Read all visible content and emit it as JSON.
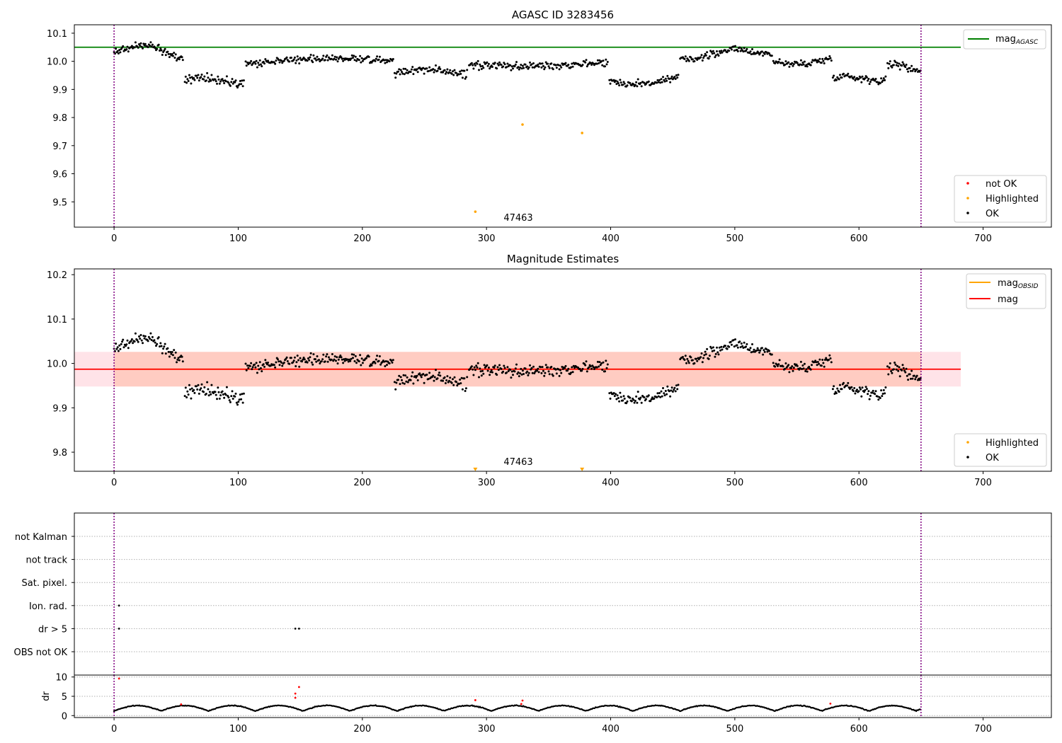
{
  "chart_data": [
    {
      "type": "scatter",
      "title": "AGASC ID 3283456",
      "xlim": [
        -32,
        755
      ],
      "ylim": [
        9.41,
        10.13
      ],
      "xticks": [
        0,
        100,
        200,
        300,
        400,
        500,
        600,
        700
      ],
      "yticks": [
        9.5,
        9.6,
        9.7,
        9.8,
        9.9,
        10.0,
        10.1
      ],
      "hlines": [
        {
          "name": "mag_AGASC",
          "y": 10.05,
          "x_end": 682,
          "color": "#008000"
        }
      ],
      "vlines": [
        0,
        650
      ],
      "annotations": [
        {
          "text": "47463",
          "x": 325,
          "y": 9.45
        }
      ],
      "highlighted": [
        [
          291,
          9.465
        ],
        [
          329,
          9.775
        ],
        [
          377,
          9.745
        ]
      ],
      "legend_lines": [
        {
          "label": "mag",
          "sub": "AGASC",
          "color": "#008000"
        }
      ],
      "legend_points": [
        {
          "label": "not OK",
          "color": "#ff0000"
        },
        {
          "label": "Highlighted",
          "color": "#ffa500"
        },
        {
          "label": "OK",
          "color": "#000000"
        }
      ],
      "legend_position": "upper-right / lower-right"
    },
    {
      "type": "scatter",
      "title": "Magnitude Estimates",
      "xlim": [
        -32,
        755
      ],
      "ylim": [
        9.757,
        10.213
      ],
      "xticks": [
        0,
        100,
        200,
        300,
        400,
        500,
        600,
        700
      ],
      "yticks": [
        9.8,
        9.9,
        10.0,
        10.1,
        10.2
      ],
      "mean_line": {
        "name": "mag",
        "y": 9.987,
        "x_end": 682,
        "color": "#ff0000"
      },
      "band": {
        "low": 9.948,
        "high": 10.026,
        "x_obs_start": 0,
        "x_obs_end": 650,
        "x_end": 682
      },
      "vlines": [
        0,
        650
      ],
      "annotations": [
        {
          "text": "47463",
          "x": 325,
          "y": 9.77
        }
      ],
      "highlighted_markers": [
        [
          291,
          9.762
        ],
        [
          377,
          9.762
        ]
      ],
      "legend_lines": [
        {
          "label": "mag",
          "sub": "OBSID",
          "color": "#ffa500"
        },
        {
          "label": "mag",
          "sub": "",
          "color": "#ff0000"
        }
      ],
      "legend_points": [
        {
          "label": "Highlighted",
          "color": "#ffa500"
        },
        {
          "label": "OK",
          "color": "#000000"
        }
      ]
    },
    {
      "type": "scatter",
      "title": "",
      "xlim": [
        -32,
        755
      ],
      "categories": [
        "not Kalman",
        "not track",
        "Sat. pixel.",
        "Ion. rad.",
        "dr > 5",
        "OBS not OK"
      ],
      "flag_points": [
        {
          "category": "Ion. rad.",
          "x": [
            4
          ]
        },
        {
          "category": "dr > 5",
          "x": [
            4,
            146,
            149
          ]
        }
      ],
      "vlines": [
        0,
        650
      ]
    },
    {
      "type": "scatter",
      "title": "",
      "ylabel": "dr",
      "xlim": [
        -32,
        755
      ],
      "ylim": [
        -0.5,
        10.5
      ],
      "xticks": [
        0,
        100,
        200,
        300,
        400,
        500,
        600,
        700
      ],
      "yticks": [
        0,
        5,
        10
      ],
      "red_points": [
        [
          4,
          9.6
        ],
        [
          54,
          2.9
        ],
        [
          146,
          5.7
        ],
        [
          146,
          4.6
        ],
        [
          149,
          7.4
        ],
        [
          291,
          4.0
        ],
        [
          328,
          3.0
        ],
        [
          329,
          3.9
        ],
        [
          577,
          3.1
        ]
      ],
      "vlines": [
        0,
        650
      ]
    }
  ],
  "colors": {
    "ok": "#000000",
    "not_ok": "#ff0000",
    "highlighted": "#ffa500",
    "agasc_line": "#008000",
    "mean_line": "#ff0000",
    "band_fill": "#ffc0cb",
    "band_obs_fill": "#ffa07a",
    "vline": "#800080"
  }
}
